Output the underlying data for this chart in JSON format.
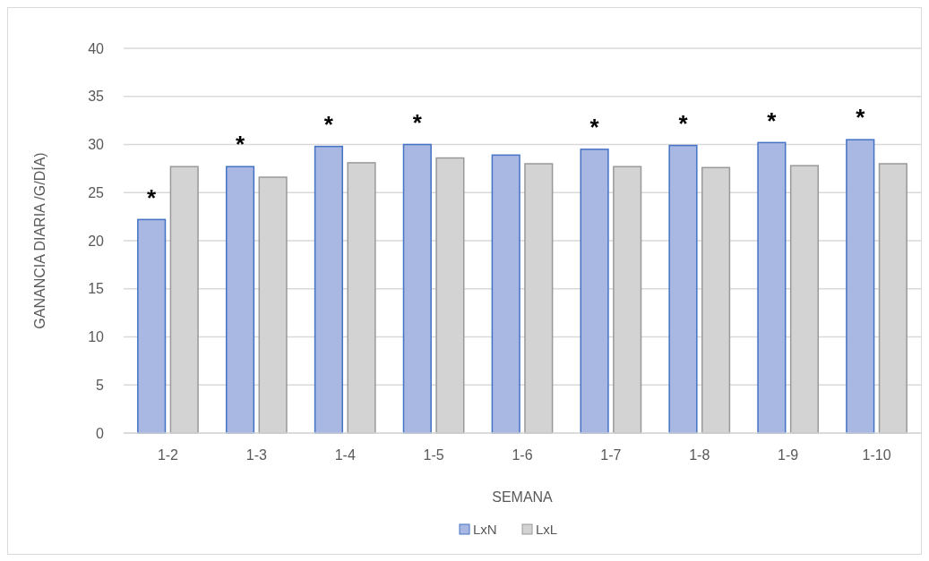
{
  "chart_data": {
    "type": "bar",
    "xlabel": "SEMANA",
    "ylabel": "GANANCIA DIARIA /G/DÍA)",
    "categories": [
      "1-2",
      "1-3",
      "1-4",
      "1-5",
      "1-6",
      "1-7",
      "1-8",
      "1-9",
      "1-10"
    ],
    "series": [
      {
        "name": "LxN",
        "color": "#a9b8e2",
        "values": [
          22.2,
          27.7,
          29.8,
          30.0,
          28.9,
          29.5,
          29.9,
          30.2,
          30.5
        ]
      },
      {
        "name": "LxL",
        "color": "#d3d3d3",
        "values": [
          27.7,
          26.6,
          28.1,
          28.6,
          28.0,
          27.7,
          27.6,
          27.8,
          28.0
        ]
      }
    ],
    "ylim": [
      0,
      40
    ],
    "yticks": [
      0,
      5,
      10,
      15,
      20,
      25,
      30,
      35,
      40
    ],
    "grid": "y",
    "legend": "bottom",
    "annotations": [
      {
        "text": "*",
        "x": "1-2",
        "y": 22.2
      },
      {
        "text": "*",
        "x": "1-3",
        "y": 27.7
      },
      {
        "text": "*",
        "x": "1-4",
        "y": 29.8
      },
      {
        "text": "*",
        "x": "1-5",
        "y": 30.0
      },
      {
        "text": "*",
        "x": "1-7",
        "y": 29.5
      },
      {
        "text": "*",
        "x": "1-8",
        "y": 29.9
      },
      {
        "text": "*",
        "x": "1-9",
        "y": 30.2
      },
      {
        "text": "*",
        "x": "1-10",
        "y": 30.5
      }
    ]
  }
}
